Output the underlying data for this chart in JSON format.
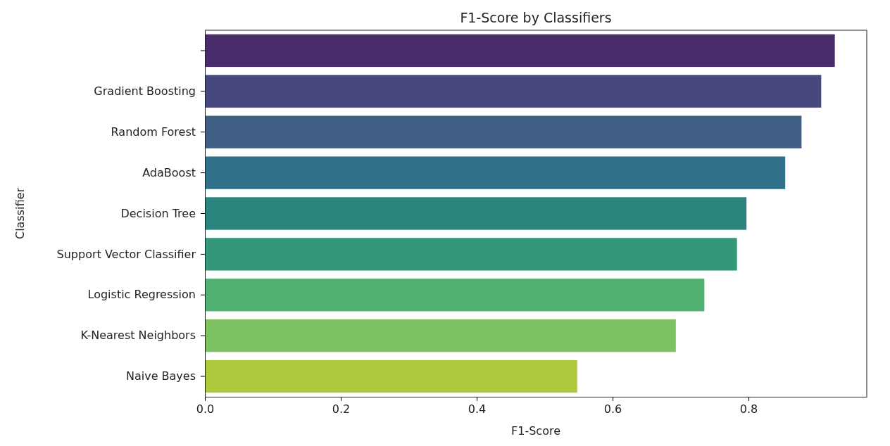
{
  "chart_data": {
    "type": "bar",
    "orientation": "horizontal",
    "title": "F1-Score by Classifiers",
    "xlabel": "F1-Score",
    "ylabel": "Classifier",
    "categories": [
      null,
      "Gradient Boosting",
      "Random Forest",
      "AdaBoost",
      "Decision Tree",
      "Support Vector Classifier",
      "Logistic Regression",
      "K-Nearest Neighbors",
      "Naive Bayes"
    ],
    "values": [
      0.927,
      0.907,
      0.878,
      0.854,
      0.797,
      0.783,
      0.735,
      0.693,
      0.548
    ],
    "colors": [
      "#482c6a",
      "#46487e",
      "#3f5f85",
      "#31728a",
      "#2b857f",
      "#34977a",
      "#52b073",
      "#7fc263",
      "#afc93f"
    ],
    "xlim": [
      0,
      0.974
    ],
    "xticks": [
      {
        "value": 0,
        "label": "0.0"
      },
      {
        "value": 0.2,
        "label": "0.2"
      },
      {
        "value": 0.4,
        "label": "0.4"
      },
      {
        "value": 0.6,
        "label": "0.6"
      },
      {
        "value": 0.8,
        "label": "0.8"
      }
    ],
    "grid": false
  }
}
